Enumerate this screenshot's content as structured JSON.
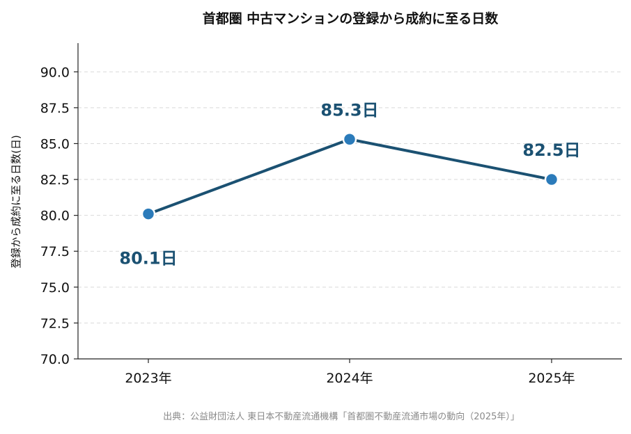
{
  "chart_data": {
    "type": "line",
    "title": "首都圏 中古マンションの登録から成約に至る日数",
    "xlabel": "",
    "ylabel": "登録から成約に至る日数(日)",
    "categories": [
      "2023年",
      "2024年",
      "2025年"
    ],
    "series": [
      {
        "values": [
          80.1,
          85.3,
          82.5
        ],
        "data_labels": [
          "80.1日",
          "85.3日",
          "82.5日"
        ],
        "color": "#1b5172",
        "marker_color": "#2b7bba"
      }
    ],
    "ylim": [
      70,
      92
    ],
    "yticks": [
      70.0,
      72.5,
      75.0,
      77.5,
      80.0,
      82.5,
      85.0,
      87.5,
      90.0
    ],
    "ytick_labels": [
      "70.0",
      "72.5",
      "75.0",
      "77.5",
      "80.0",
      "82.5",
      "85.0",
      "87.5",
      "90.0"
    ],
    "grid": "horizontal-dashed",
    "source": "出典：公益財団法人 東日本不動産流通機構「首都圏不動産流通市場の動向（2025年）」"
  }
}
